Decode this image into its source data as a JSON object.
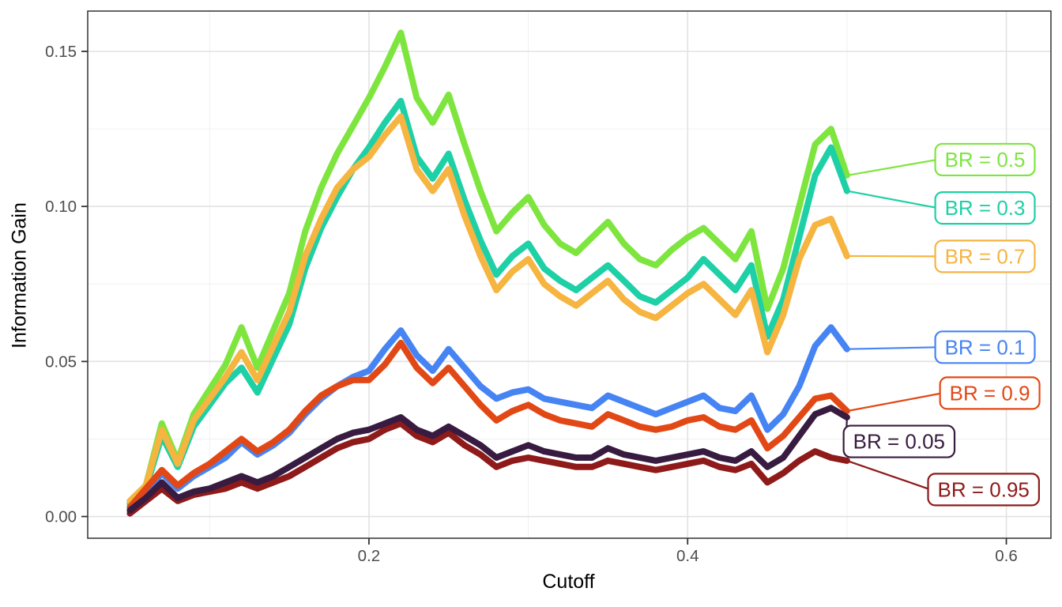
{
  "chart_data": {
    "type": "line",
    "title": "",
    "xlabel": "Cutoff",
    "ylabel": "Information Gain",
    "grid": "major+minor",
    "legend_position": "direct-labels-right",
    "xlim": [
      0.0235,
      0.628
    ],
    "ylim": [
      -0.007,
      0.163
    ],
    "x_major_ticks": [
      0.2,
      0.4,
      0.6
    ],
    "x_tick_labels": [
      "0.2",
      "0.4",
      "0.6"
    ],
    "x_minor_ticks": [
      0.1,
      0.3,
      0.5
    ],
    "y_major_ticks": [
      0,
      0.05,
      0.1,
      0.15
    ],
    "y_tick_labels": [
      "0.00",
      "0.05",
      "0.10",
      "0.15"
    ],
    "y_minor_ticks": [
      0.025,
      0.075,
      0.125
    ],
    "x": [
      0.05,
      0.06,
      0.07,
      0.08,
      0.09,
      0.1,
      0.11,
      0.12,
      0.13,
      0.14,
      0.15,
      0.16,
      0.17,
      0.18,
      0.19,
      0.2,
      0.21,
      0.22,
      0.23,
      0.24,
      0.25,
      0.26,
      0.27,
      0.28,
      0.29,
      0.3,
      0.31,
      0.32,
      0.33,
      0.34,
      0.35,
      0.36,
      0.37,
      0.38,
      0.39,
      0.4,
      0.41,
      0.42,
      0.43,
      0.44,
      0.45,
      0.46,
      0.47,
      0.48,
      0.49,
      0.5
    ],
    "series": [
      {
        "name": "BR = 0.5",
        "color": "#7EE53F",
        "label": {
          "text": "BR = 0.5",
          "box_x": 0.5554,
          "box_y": 0.1151
        },
        "values": [
          0.005,
          0.01,
          0.03,
          0.018,
          0.033,
          0.041,
          0.049,
          0.061,
          0.048,
          0.06,
          0.072,
          0.092,
          0.106,
          0.117,
          0.126,
          0.135,
          0.145,
          0.156,
          0.135,
          0.127,
          0.136,
          0.12,
          0.105,
          0.092,
          0.098,
          0.103,
          0.094,
          0.088,
          0.085,
          0.09,
          0.095,
          0.088,
          0.083,
          0.081,
          0.086,
          0.09,
          0.093,
          0.088,
          0.083,
          0.092,
          0.067,
          0.08,
          0.1,
          0.12,
          0.125,
          0.11
        ]
      },
      {
        "name": "BR = 0.3",
        "color": "#1ED0A5",
        "label": {
          "text": "BR = 0.3",
          "box_x": 0.5554,
          "box_y": 0.0995
        },
        "values": [
          0.004,
          0.009,
          0.026,
          0.016,
          0.029,
          0.036,
          0.043,
          0.048,
          0.04,
          0.051,
          0.062,
          0.08,
          0.093,
          0.103,
          0.112,
          0.119,
          0.127,
          0.134,
          0.116,
          0.109,
          0.117,
          0.102,
          0.089,
          0.078,
          0.084,
          0.088,
          0.08,
          0.076,
          0.073,
          0.077,
          0.081,
          0.076,
          0.071,
          0.069,
          0.073,
          0.077,
          0.083,
          0.078,
          0.073,
          0.081,
          0.058,
          0.07,
          0.09,
          0.11,
          0.119,
          0.105
        ]
      },
      {
        "name": "BR = 0.7",
        "color": "#F6B440",
        "label": {
          "text": "BR = 0.7",
          "box_x": 0.5554,
          "box_y": 0.0839
        },
        "values": [
          0.005,
          0.01,
          0.028,
          0.017,
          0.031,
          0.038,
          0.045,
          0.053,
          0.044,
          0.055,
          0.066,
          0.084,
          0.096,
          0.106,
          0.112,
          0.116,
          0.123,
          0.129,
          0.112,
          0.105,
          0.112,
          0.097,
          0.084,
          0.073,
          0.079,
          0.083,
          0.075,
          0.071,
          0.068,
          0.072,
          0.076,
          0.07,
          0.066,
          0.064,
          0.068,
          0.072,
          0.075,
          0.07,
          0.065,
          0.073,
          0.053,
          0.065,
          0.083,
          0.094,
          0.096,
          0.084
        ]
      },
      {
        "name": "BR = 0.1",
        "color": "#4684F4",
        "label": {
          "text": "BR = 0.1",
          "box_x": 0.5554,
          "box_y": 0.0546
        },
        "values": [
          0.003,
          0.008,
          0.014,
          0.009,
          0.013,
          0.016,
          0.019,
          0.024,
          0.02,
          0.023,
          0.027,
          0.033,
          0.038,
          0.042,
          0.045,
          0.047,
          0.054,
          0.06,
          0.052,
          0.047,
          0.054,
          0.048,
          0.042,
          0.038,
          0.04,
          0.041,
          0.038,
          0.037,
          0.036,
          0.035,
          0.039,
          0.037,
          0.035,
          0.033,
          0.035,
          0.037,
          0.039,
          0.035,
          0.034,
          0.039,
          0.028,
          0.033,
          0.042,
          0.055,
          0.061,
          0.054
        ]
      },
      {
        "name": "BR = 0.9",
        "color": "#E24815",
        "label": {
          "text": "BR = 0.9",
          "box_x": 0.5584,
          "box_y": 0.0398
        },
        "values": [
          0.003,
          0.009,
          0.015,
          0.01,
          0.014,
          0.017,
          0.021,
          0.025,
          0.021,
          0.024,
          0.028,
          0.034,
          0.039,
          0.042,
          0.044,
          0.044,
          0.049,
          0.056,
          0.048,
          0.043,
          0.048,
          0.042,
          0.036,
          0.031,
          0.034,
          0.036,
          0.033,
          0.031,
          0.03,
          0.029,
          0.033,
          0.031,
          0.029,
          0.028,
          0.029,
          0.031,
          0.032,
          0.029,
          0.028,
          0.031,
          0.022,
          0.026,
          0.032,
          0.038,
          0.039,
          0.034
        ]
      },
      {
        "name": "BR = 0.95",
        "color": "#8F1A1A",
        "label": {
          "text": "BR = 0.95",
          "box_x": 0.5509,
          "box_y": 0.0087
        },
        "values": [
          0.001,
          0.005,
          0.009,
          0.005,
          0.007,
          0.008,
          0.009,
          0.011,
          0.009,
          0.011,
          0.013,
          0.016,
          0.019,
          0.022,
          0.024,
          0.025,
          0.028,
          0.03,
          0.026,
          0.024,
          0.027,
          0.023,
          0.02,
          0.016,
          0.018,
          0.019,
          0.018,
          0.017,
          0.016,
          0.016,
          0.018,
          0.017,
          0.016,
          0.015,
          0.016,
          0.017,
          0.018,
          0.016,
          0.015,
          0.017,
          0.011,
          0.014,
          0.018,
          0.021,
          0.019,
          0.018
        ]
      },
      {
        "name": "BR = 0.05",
        "color": "#381B40",
        "label": {
          "text": "BR = 0.05",
          "box_x": 0.4979,
          "box_y": 0.0242
        },
        "values": [
          0.002,
          0.006,
          0.011,
          0.006,
          0.008,
          0.009,
          0.011,
          0.013,
          0.011,
          0.013,
          0.016,
          0.019,
          0.022,
          0.025,
          0.027,
          0.028,
          0.03,
          0.032,
          0.028,
          0.026,
          0.029,
          0.026,
          0.023,
          0.019,
          0.021,
          0.023,
          0.021,
          0.02,
          0.019,
          0.019,
          0.022,
          0.02,
          0.019,
          0.018,
          0.019,
          0.02,
          0.021,
          0.019,
          0.018,
          0.021,
          0.016,
          0.019,
          0.026,
          0.033,
          0.035,
          0.032
        ]
      }
    ]
  },
  "style": {
    "background": "#FFFFFF",
    "panel_fill": "#FFFFFF",
    "panel_border": "#3F3F3F",
    "grid_major": "#E2E2E2",
    "grid_minor": "#F0F0F0",
    "tick_color": "#333333",
    "tick_label_color": "#4D4D4D",
    "axis_title_color": "#000000",
    "label_box_fill": "#FFFFFF"
  }
}
